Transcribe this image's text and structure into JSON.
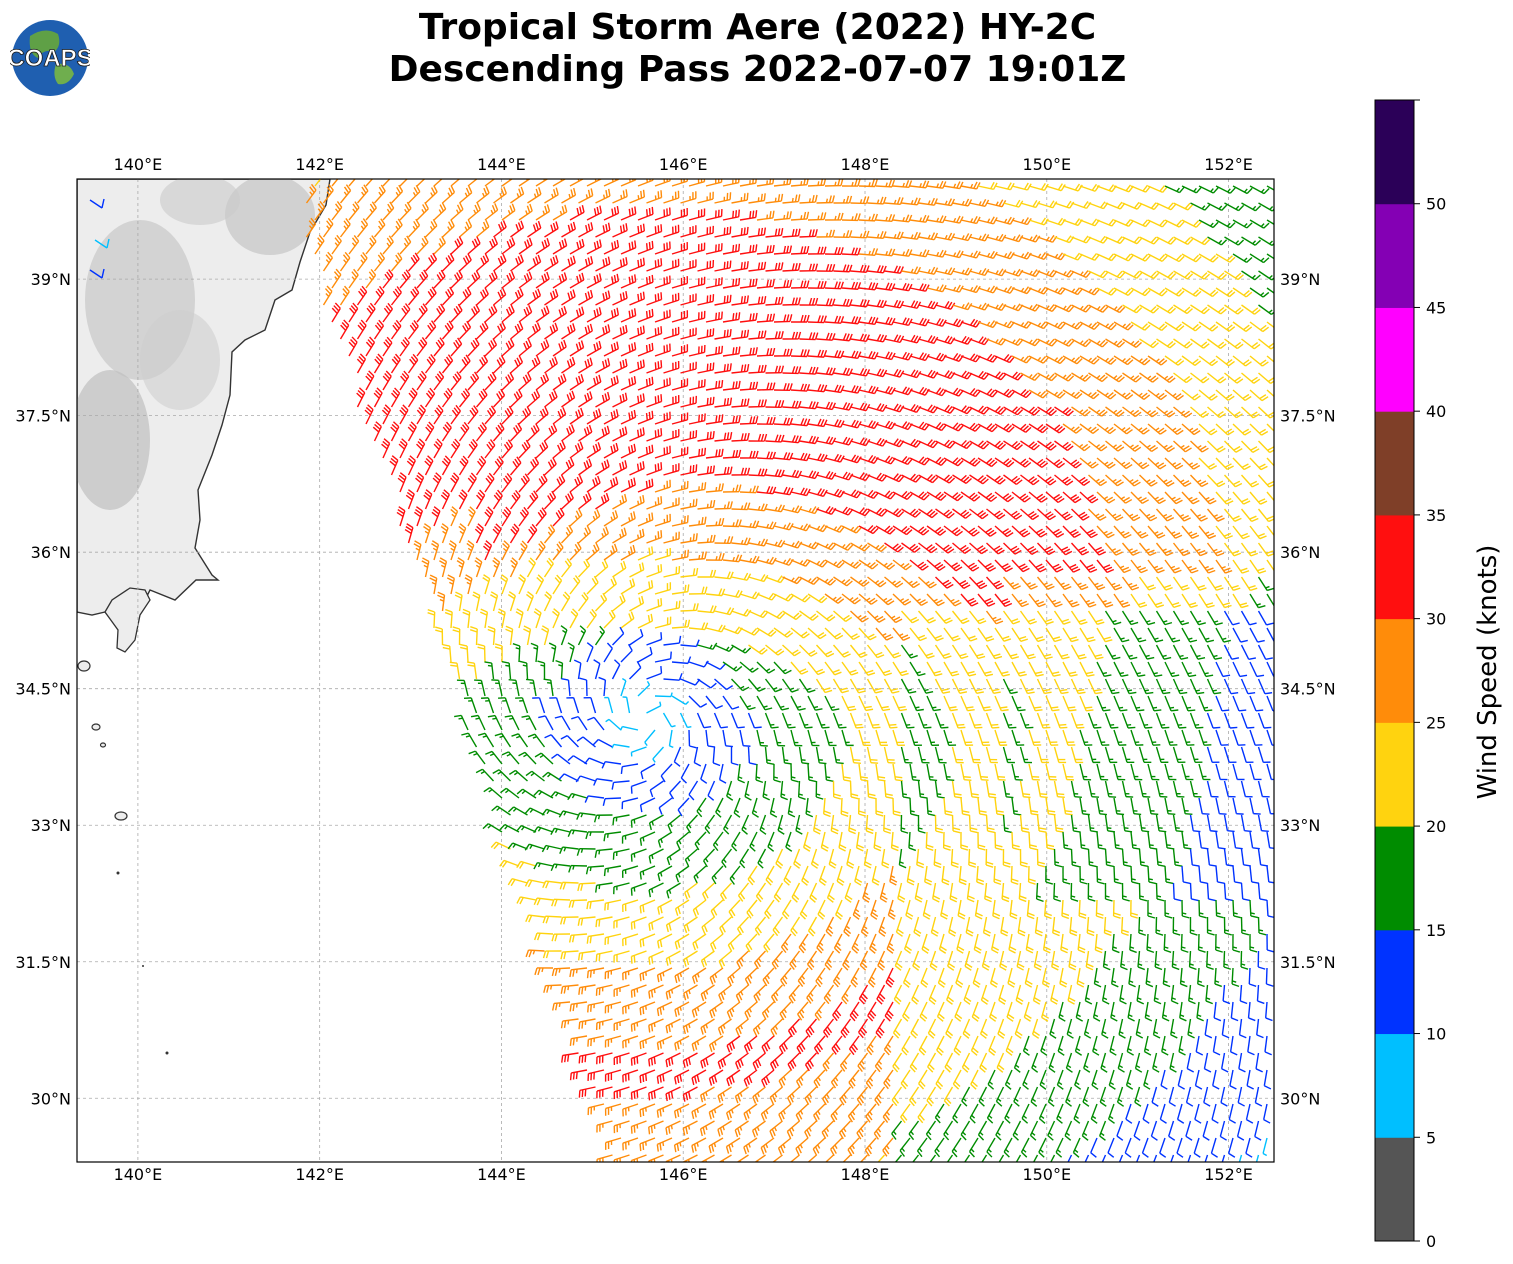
{
  "title": {
    "line1": "Tropical Storm Aere (2022) HY-2C",
    "line2": "Descending Pass 2022-07-07 19:01Z"
  },
  "logo": {
    "text": "COAPS",
    "icon": "earth-globe-icon"
  },
  "map": {
    "lon_range": [
      139.33,
      152.5
    ],
    "lat_range": [
      29.3,
      40.1
    ],
    "lon_ticks": [
      {
        "value": 140,
        "label": "140°E"
      },
      {
        "value": 142,
        "label": "142°E"
      },
      {
        "value": 144,
        "label": "144°E"
      },
      {
        "value": 146,
        "label": "146°E"
      },
      {
        "value": 148,
        "label": "148°E"
      },
      {
        "value": 150,
        "label": "150°E"
      },
      {
        "value": 152,
        "label": "152°E"
      }
    ],
    "lat_ticks": [
      {
        "value": 39,
        "label": "39°N"
      },
      {
        "value": 37.5,
        "label": "37.5°N"
      },
      {
        "value": 36,
        "label": "36°N"
      },
      {
        "value": 34.5,
        "label": "34.5°N"
      },
      {
        "value": 33,
        "label": "33°N"
      },
      {
        "value": 31.5,
        "label": "31.5°N"
      },
      {
        "value": 30,
        "label": "30°N"
      }
    ],
    "grid": true,
    "storm_center": {
      "lon": 145.6,
      "lat": 34.2
    },
    "land_color": "#f2f2f2",
    "coast_color": "#333333"
  },
  "colorbar": {
    "label": "Wind Speed (knots)",
    "bins": [
      {
        "from": 0,
        "to": 5,
        "color": "#555555"
      },
      {
        "from": 5,
        "to": 10,
        "color": "#00bfff"
      },
      {
        "from": 10,
        "to": 15,
        "color": "#0033ff"
      },
      {
        "from": 15,
        "to": 20,
        "color": "#008c00"
      },
      {
        "from": 20,
        "to": 25,
        "color": "#ffd30f"
      },
      {
        "from": 25,
        "to": 30,
        "color": "#ff8c0a"
      },
      {
        "from": 30,
        "to": 35,
        "color": "#ff0f0f"
      },
      {
        "from": 35,
        "to": 40,
        "color": "#7f3f28"
      },
      {
        "from": 40,
        "to": 45,
        "color": "#ff00ff"
      },
      {
        "from": 45,
        "to": 50,
        "color": "#8400b4"
      },
      {
        "from": 50,
        "to": 55,
        "color": "#2b0058"
      }
    ],
    "tick_labels": [
      "0",
      "5",
      "10",
      "15",
      "20",
      "25",
      "30",
      "35",
      "40",
      "45",
      "50"
    ]
  }
}
